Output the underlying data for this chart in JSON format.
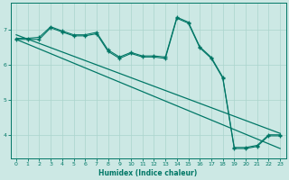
{
  "xlabel": "Humidex (Indice chaleur)",
  "bg_color": "#cce8e4",
  "grid_color": "#aad4cc",
  "line_color": "#007766",
  "xlim": [
    -0.5,
    23.5
  ],
  "ylim": [
    3.35,
    7.75
  ],
  "yticks": [
    4,
    5,
    6,
    7
  ],
  "xticks": [
    0,
    1,
    2,
    3,
    4,
    5,
    6,
    7,
    8,
    9,
    10,
    11,
    12,
    13,
    14,
    15,
    16,
    17,
    18,
    19,
    20,
    21,
    22,
    23
  ],
  "main_x": [
    0,
    1,
    2,
    3,
    4,
    5,
    6,
    7,
    8,
    9,
    10,
    11,
    12,
    13,
    14,
    15,
    16,
    17,
    18,
    19,
    20,
    21,
    22,
    23
  ],
  "main_y": [
    6.72,
    6.72,
    6.72,
    7.05,
    6.93,
    6.82,
    6.82,
    6.88,
    6.38,
    6.18,
    6.32,
    6.22,
    6.22,
    6.18,
    7.32,
    7.18,
    6.48,
    6.18,
    5.62,
    3.62,
    3.62,
    3.68,
    3.98,
    3.98
  ],
  "upper_line_x": [
    0,
    23
  ],
  "upper_line_y": [
    6.85,
    4.05
  ],
  "lower_line_x": [
    0,
    23
  ],
  "lower_line_y": [
    6.72,
    3.62
  ],
  "jagged2_y": [
    6.75,
    6.75,
    6.78,
    7.08,
    6.96,
    6.85,
    6.85,
    6.92,
    6.42,
    6.22,
    6.35,
    6.25,
    6.25,
    6.22,
    7.35,
    7.21,
    6.51,
    6.21,
    5.65,
    3.65,
    3.65,
    3.71,
    4.01,
    4.01
  ]
}
